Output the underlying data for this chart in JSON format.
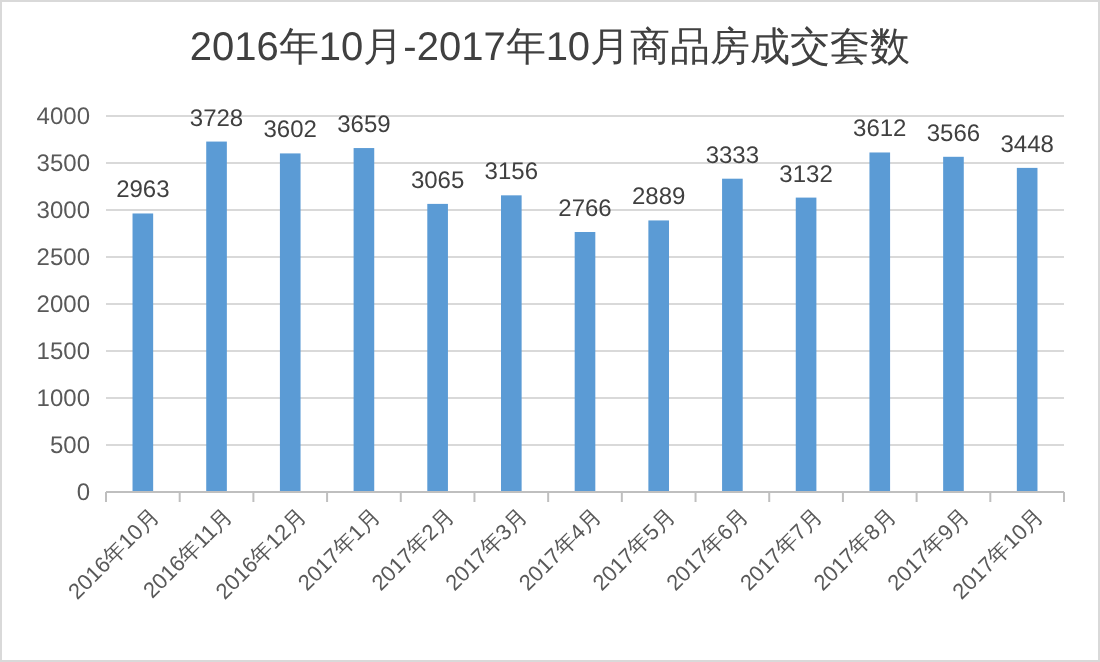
{
  "chart_data": {
    "type": "bar",
    "title": "2016年10月-2017年10月商品房成交套数",
    "categories": [
      "2016年10月",
      "2016年11月",
      "2016年12月",
      "2017年1月",
      "2017年2月",
      "2017年3月",
      "2017年4月",
      "2017年5月",
      "2017年6月",
      "2017年7月",
      "2017年8月",
      "2017年9月",
      "2017年10月"
    ],
    "values": [
      2963,
      3728,
      3602,
      3659,
      3065,
      3156,
      2766,
      2889,
      3333,
      3132,
      3612,
      3566,
      3448
    ],
    "color": "#5b9bd5",
    "ylim": [
      0,
      4000
    ],
    "yticks": [
      0,
      500,
      1000,
      1500,
      2000,
      2500,
      3000,
      3500,
      4000
    ],
    "grid": "y",
    "data_labels": true
  }
}
